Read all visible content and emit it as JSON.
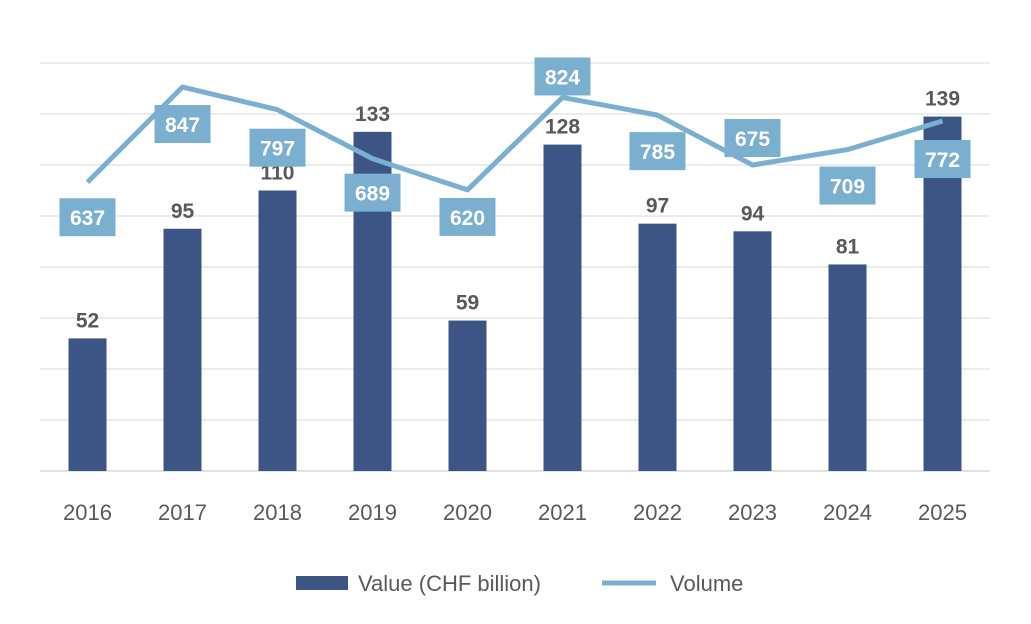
{
  "chart_data": {
    "type": "bar",
    "categories": [
      "2016",
      "2017",
      "2018",
      "2019",
      "2020",
      "2021",
      "2022",
      "2023",
      "2024",
      "2025"
    ],
    "series": [
      {
        "name": "Value (CHF billion)",
        "type": "bar",
        "axis": "primary",
        "color": "#3d5584",
        "values": [
          52,
          95,
          110,
          133,
          59,
          128,
          97,
          94,
          81,
          139
        ]
      },
      {
        "name": "Volume",
        "type": "line",
        "axis": "secondary",
        "color": "#7aafcf",
        "values": [
          637,
          847,
          797,
          689,
          620,
          824,
          785,
          675,
          709,
          772
        ]
      }
    ],
    "ylim": [
      0,
      160
    ],
    "y2lim": [
      0,
      900
    ],
    "grid": true,
    "legend": "bottom",
    "data_labels": true
  }
}
